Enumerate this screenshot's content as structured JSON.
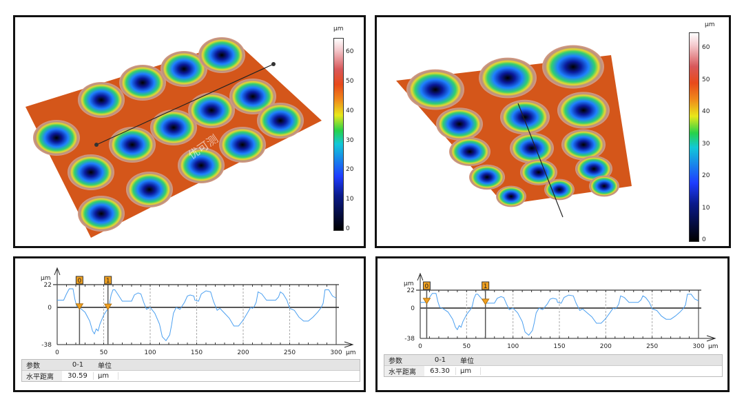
{
  "colorbar_left": {
    "unit": "µm",
    "ticks": [
      "60",
      "50",
      "40",
      "30",
      "20",
      "10",
      "0"
    ]
  },
  "colorbar_right": {
    "unit": "µm",
    "ticks": [
      "60",
      "50",
      "40",
      "30",
      "20",
      "10",
      "0"
    ]
  },
  "watermark": "优可测",
  "chart_data": [
    {
      "type": "line",
      "title": "",
      "xlabel": "µm",
      "ylabel": "µm",
      "xlim": [
        0,
        300
      ],
      "ylim": [
        -38,
        22
      ],
      "xticks": [
        "0",
        "50",
        "100",
        "150",
        "200",
        "250",
        "300"
      ],
      "yticks": [
        "22",
        "0",
        "-38"
      ],
      "x_unit": "µm",
      "y_unit": "µm",
      "cursors": [
        {
          "label": "0",
          "x": 24
        },
        {
          "label": "1",
          "x": 54.6
        }
      ],
      "x": [
        0,
        7,
        10,
        13,
        17,
        19,
        21,
        25,
        30,
        35,
        38,
        40,
        42,
        44,
        46,
        50,
        54,
        56,
        58,
        60,
        62,
        65,
        70,
        80,
        83,
        87,
        90,
        93,
        96,
        100,
        105,
        110,
        113,
        117,
        121,
        123,
        125,
        128,
        132,
        137,
        140,
        143,
        147,
        148,
        152,
        155,
        160,
        165,
        168,
        172,
        175,
        180,
        185,
        190,
        195,
        200,
        205,
        208,
        210,
        212,
        214,
        216,
        220,
        225,
        230,
        235,
        238,
        240,
        243,
        247,
        250,
        255,
        260,
        265,
        270,
        275,
        280,
        284,
        286,
        288,
        292,
        296,
        300
      ],
      "y": [
        7,
        7,
        13,
        18,
        18,
        8,
        1,
        -1,
        -5,
        -14,
        -24,
        -27,
        -22,
        -24,
        -17,
        -8,
        -2,
        2,
        12,
        17,
        17,
        13,
        6,
        6,
        12,
        14,
        13,
        5,
        -2,
        0,
        -6,
        -17,
        -30,
        -34,
        -28,
        -18,
        -6,
        0,
        -2,
        5,
        11,
        12,
        11,
        7,
        6,
        13,
        16,
        15,
        6,
        -3,
        -1,
        -6,
        -11,
        -19,
        -19,
        -13,
        -5,
        0,
        -1,
        1,
        5,
        15,
        13,
        7,
        7,
        7,
        10,
        15,
        13,
        7,
        -1,
        -3,
        -10,
        -14,
        -14,
        -10,
        -5,
        0,
        4,
        17,
        17,
        11,
        9
      ],
      "table": {
        "headers": [
          "参数",
          "0-1",
          "单位"
        ],
        "row": [
          "水平距离",
          "30.59",
          "µm"
        ]
      }
    },
    {
      "type": "line",
      "title": "",
      "xlabel": "µm",
      "ylabel": "µm",
      "xlim": [
        0,
        300
      ],
      "ylim": [
        -38,
        22
      ],
      "xticks": [
        "0",
        "50",
        "100",
        "150",
        "200",
        "250",
        "300"
      ],
      "yticks": [
        "22",
        "0",
        "-38"
      ],
      "x_unit": "µm",
      "y_unit": "µm",
      "cursors": [
        {
          "label": "0",
          "x": 7
        },
        {
          "label": "1",
          "x": 70.3
        }
      ],
      "x": [
        0,
        7,
        10,
        13,
        17,
        19,
        21,
        25,
        30,
        35,
        38,
        40,
        42,
        44,
        46,
        50,
        54,
        56,
        58,
        60,
        62,
        65,
        70,
        80,
        83,
        87,
        90,
        93,
        96,
        100,
        105,
        110,
        113,
        117,
        121,
        123,
        125,
        128,
        132,
        137,
        140,
        143,
        147,
        148,
        152,
        155,
        160,
        165,
        168,
        172,
        175,
        180,
        185,
        190,
        195,
        200,
        205,
        208,
        210,
        212,
        214,
        216,
        220,
        225,
        230,
        235,
        238,
        240,
        243,
        247,
        250,
        255,
        260,
        265,
        270,
        275,
        280,
        284,
        286,
        288,
        292,
        296,
        300
      ],
      "y": [
        7,
        7,
        13,
        18,
        18,
        8,
        1,
        -1,
        -5,
        -14,
        -24,
        -27,
        -22,
        -24,
        -17,
        -8,
        -2,
        2,
        12,
        17,
        17,
        13,
        6,
        6,
        12,
        14,
        13,
        5,
        -2,
        0,
        -6,
        -17,
        -30,
        -34,
        -28,
        -18,
        -6,
        0,
        -2,
        5,
        11,
        12,
        11,
        7,
        6,
        13,
        16,
        15,
        6,
        -3,
        -1,
        -6,
        -11,
        -19,
        -19,
        -13,
        -5,
        0,
        -1,
        1,
        5,
        15,
        13,
        7,
        7,
        7,
        10,
        15,
        13,
        7,
        -1,
        -3,
        -10,
        -14,
        -14,
        -10,
        -5,
        0,
        4,
        17,
        17,
        11,
        9
      ],
      "table": {
        "headers": [
          "参数",
          "0-1",
          "单位"
        ],
        "row": [
          "水平距离",
          "63.30",
          "µm"
        ]
      }
    }
  ]
}
